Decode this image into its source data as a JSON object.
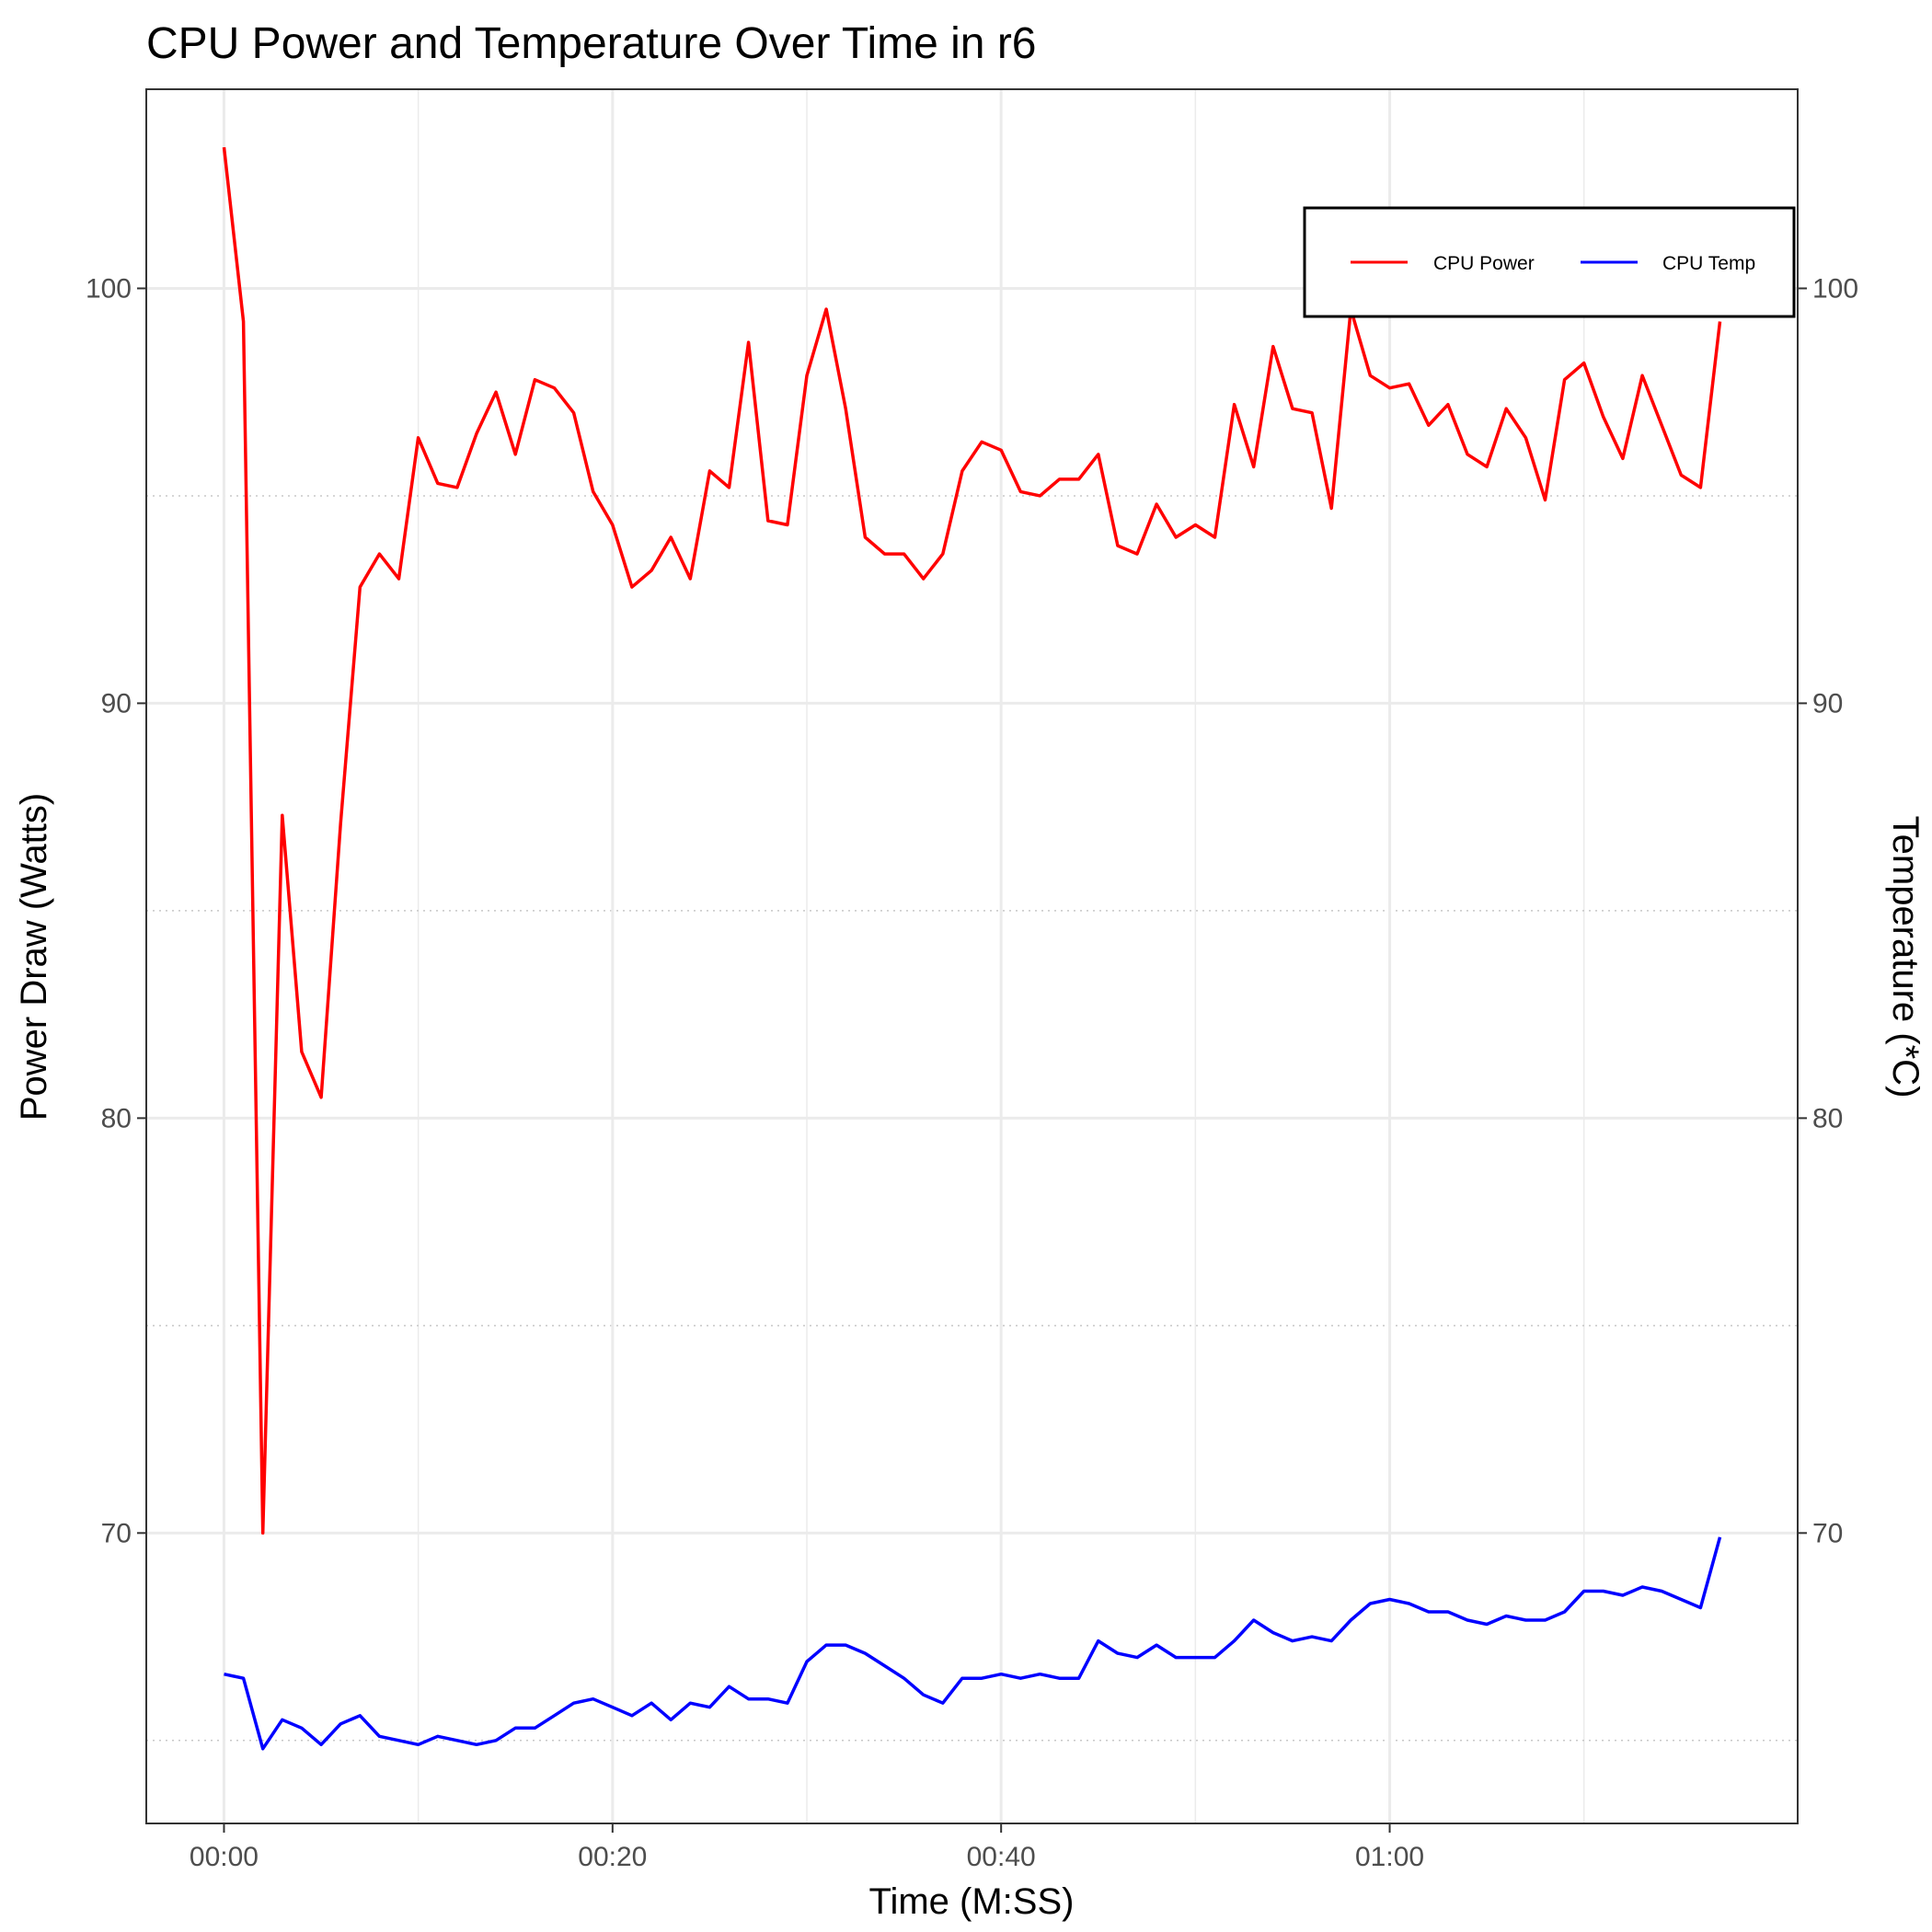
{
  "chart_data": {
    "type": "line",
    "title": "CPU Power and Temperature Over Time in r6",
    "xlabel": "Time (M:SS)",
    "ylabel": "Power Draw (Watts)",
    "y2label": "Temperature (*C)",
    "xlim": [
      -4,
      81
    ],
    "ylim": [
      63.0,
      104.8
    ],
    "x_ticks": [
      0,
      20,
      40,
      60
    ],
    "x_tick_labels": [
      "00:00",
      "00:20",
      "00:40",
      "01:00"
    ],
    "y_ticks": [
      70,
      80,
      90,
      100
    ],
    "y_tick_labels": [
      "70",
      "80",
      "90",
      "100"
    ],
    "legend_position": "top-right",
    "series": [
      {
        "name": "CPU Power",
        "color": "#ff0000",
        "x": [
          0,
          1,
          2,
          3,
          4,
          5,
          6,
          7,
          8,
          9,
          10,
          11,
          12,
          13,
          14,
          15,
          16,
          17,
          18,
          19,
          20,
          21,
          22,
          23,
          24,
          25,
          26,
          27,
          28,
          29,
          30,
          31,
          32,
          33,
          34,
          35,
          36,
          37,
          38,
          39,
          40,
          41,
          42,
          43,
          44,
          45,
          46,
          47,
          48,
          49,
          50,
          51,
          52,
          53,
          54,
          55,
          56,
          57,
          58,
          59,
          60,
          61,
          62,
          63,
          64,
          65,
          66,
          67,
          68,
          69,
          70,
          71,
          72,
          73,
          74,
          75,
          76,
          77
        ],
        "values": [
          103.4,
          99.2,
          70.0,
          87.3,
          81.6,
          80.5,
          87.1,
          92.8,
          93.6,
          93.0,
          96.4,
          95.3,
          95.2,
          96.5,
          97.5,
          96.0,
          97.8,
          97.6,
          97.0,
          95.1,
          94.3,
          92.8,
          93.2,
          94.0,
          93.0,
          95.6,
          95.2,
          98.7,
          94.4,
          94.3,
          97.9,
          99.5,
          97.1,
          94.0,
          93.6,
          93.6,
          93.0,
          93.6,
          95.6,
          96.3,
          96.1,
          95.1,
          95.0,
          95.4,
          95.4,
          96.0,
          93.8,
          93.6,
          94.8,
          94.0,
          94.3,
          94.0,
          97.2,
          95.7,
          98.6,
          97.1,
          97.0,
          94.7,
          99.5,
          97.9,
          97.6,
          97.7,
          96.7,
          97.2,
          96.0,
          95.7,
          97.1,
          96.4,
          94.9,
          97.8,
          98.2,
          96.9,
          95.9,
          97.9,
          96.7,
          95.5,
          95.2,
          99.2
        ]
      },
      {
        "name": "CPU Temp",
        "color": "#0000ff",
        "x": [
          0,
          1,
          2,
          3,
          4,
          5,
          6,
          7,
          8,
          9,
          10,
          11,
          12,
          13,
          14,
          15,
          16,
          17,
          18,
          19,
          20,
          21,
          22,
          23,
          24,
          25,
          26,
          27,
          28,
          29,
          30,
          31,
          32,
          33,
          34,
          35,
          36,
          37,
          38,
          39,
          40,
          41,
          42,
          43,
          44,
          45,
          46,
          47,
          48,
          49,
          50,
          51,
          52,
          53,
          54,
          55,
          56,
          57,
          58,
          59,
          60,
          61,
          62,
          63,
          64,
          65,
          66,
          67,
          68,
          69,
          70,
          71,
          72,
          73,
          74,
          75,
          76,
          77
        ],
        "values": [
          66.6,
          66.5,
          64.8,
          65.5,
          65.3,
          64.9,
          65.4,
          65.6,
          65.1,
          65.0,
          64.9,
          65.1,
          65.0,
          64.9,
          65.0,
          65.3,
          65.3,
          65.6,
          65.9,
          66.0,
          65.8,
          65.6,
          65.9,
          65.5,
          65.9,
          65.8,
          66.3,
          66.0,
          66.0,
          65.9,
          66.9,
          67.3,
          67.3,
          67.1,
          66.8,
          66.5,
          66.1,
          65.9,
          66.5,
          66.5,
          66.6,
          66.5,
          66.6,
          66.5,
          66.5,
          67.4,
          67.1,
          67.0,
          67.3,
          67.0,
          67.0,
          67.0,
          67.4,
          67.9,
          67.6,
          67.4,
          67.5,
          67.4,
          67.9,
          68.3,
          68.4,
          68.3,
          68.1,
          68.1,
          67.9,
          67.8,
          68.0,
          67.9,
          67.9,
          68.1,
          68.6,
          68.6,
          68.5,
          68.7,
          68.6,
          68.4,
          68.2,
          69.9
        ]
      }
    ]
  }
}
